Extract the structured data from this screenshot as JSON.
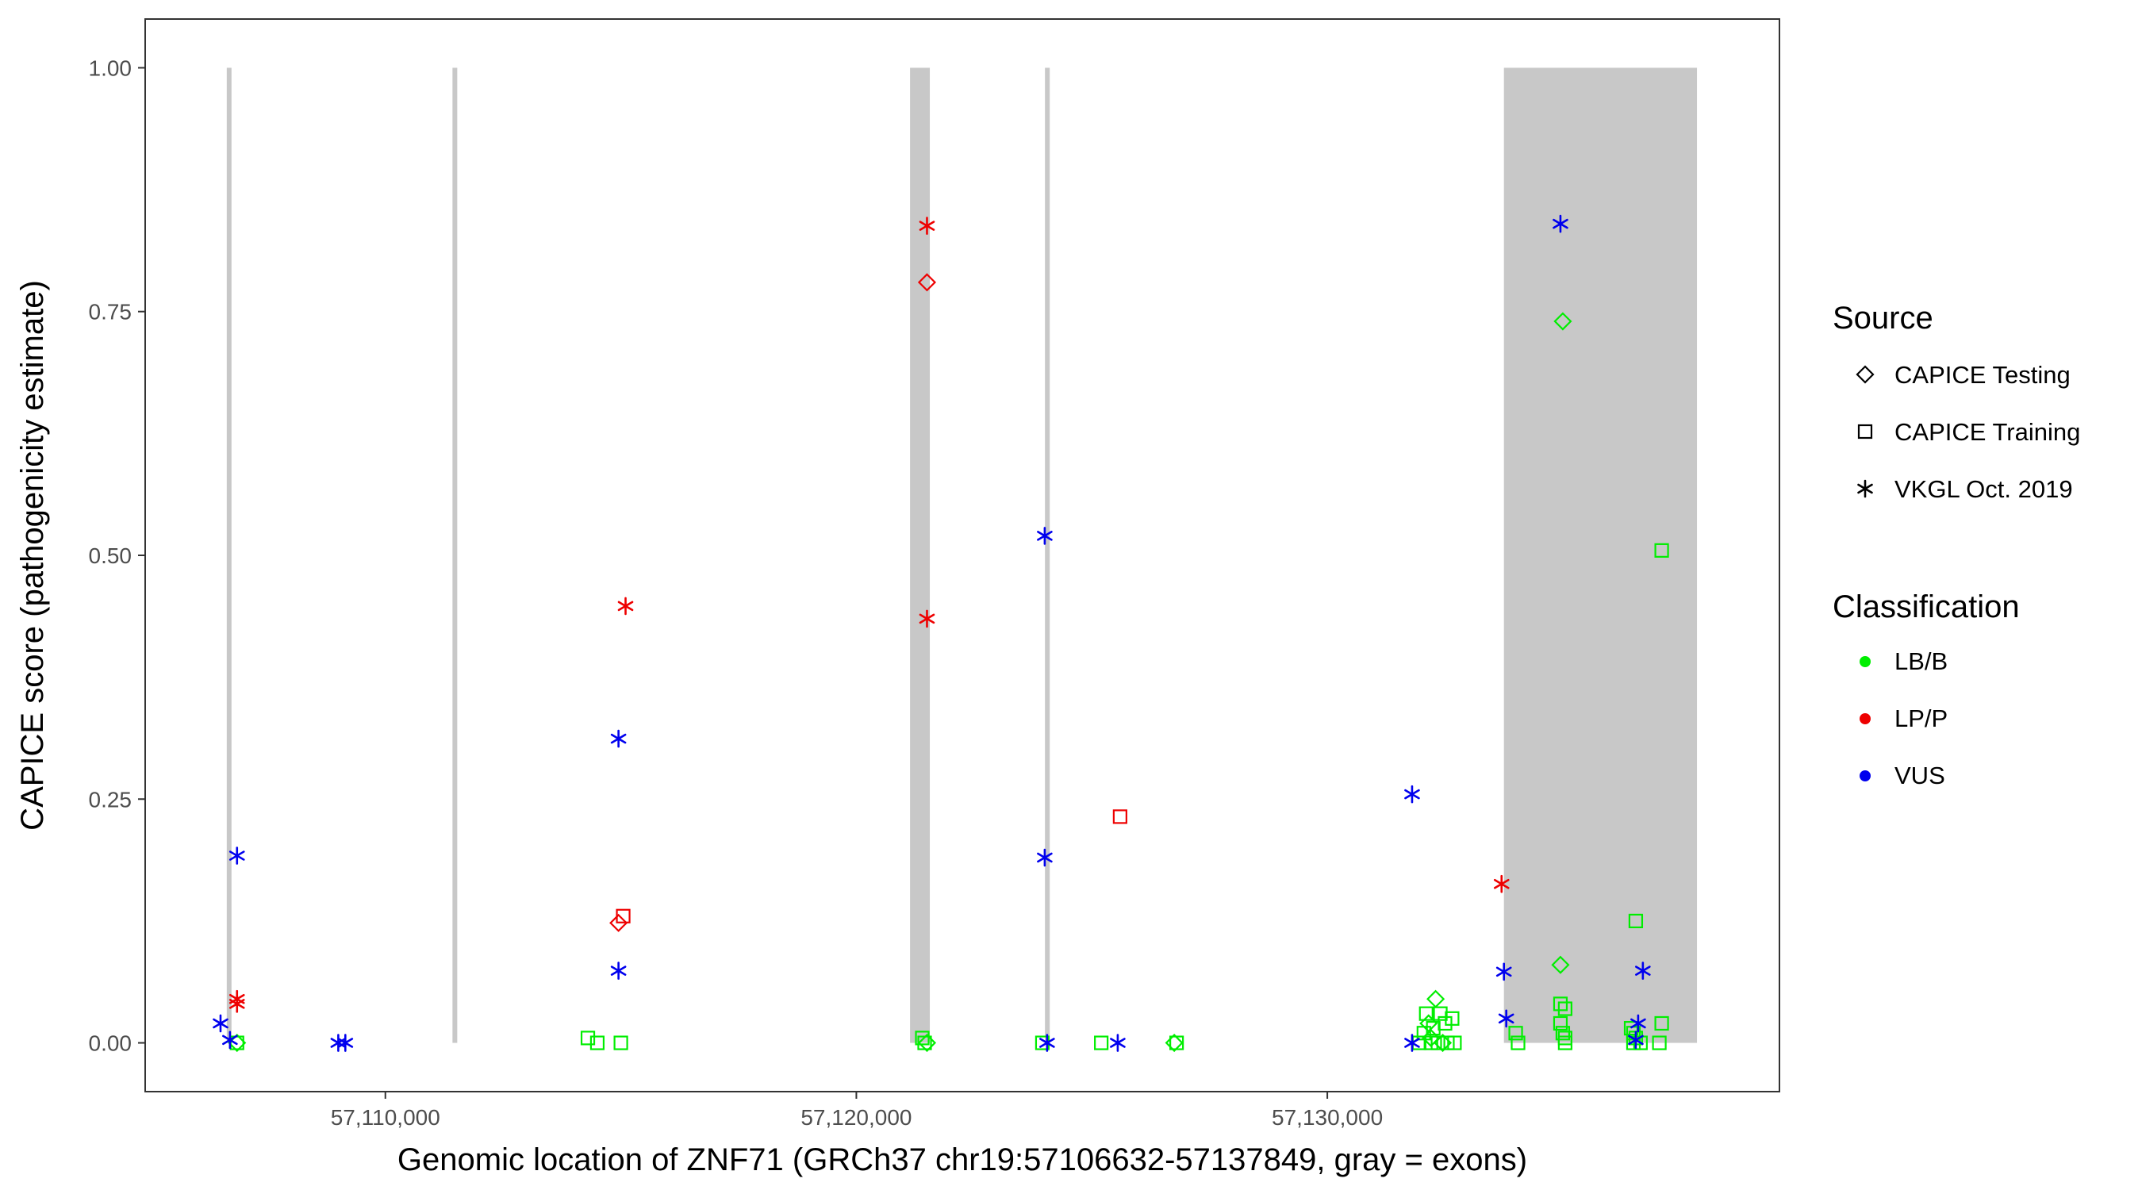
{
  "chart_data": {
    "type": "scatter",
    "title": "",
    "xlabel": "Genomic location of ZNF71 (GRCh37 chr19:57106632-57137849, gray = exons)",
    "ylabel": "CAPICE score (pathogenicity estimate)",
    "xlim": [
      57104900,
      57139600
    ],
    "ylim": [
      -0.05,
      1.05
    ],
    "x_ticks": [
      {
        "value": 57110000,
        "label": "57,110,000"
      },
      {
        "value": 57120000,
        "label": "57,120,000"
      },
      {
        "value": 57130000,
        "label": "57,130,000"
      }
    ],
    "y_ticks": [
      {
        "value": 0.0,
        "label": "0.00"
      },
      {
        "value": 0.25,
        "label": "0.25"
      },
      {
        "value": 0.5,
        "label": "0.50"
      },
      {
        "value": 0.75,
        "label": "0.75"
      },
      {
        "value": 1.0,
        "label": "1.00"
      }
    ],
    "exons": [
      {
        "start": 57106632,
        "end": 57106720
      },
      {
        "start": 57111425,
        "end": 57111500
      },
      {
        "start": 57121140,
        "end": 57121560
      },
      {
        "start": 57124005,
        "end": 57124095
      },
      {
        "start": 57133750,
        "end": 57137849
      }
    ],
    "colors": {
      "LB/B": "#00ee00",
      "LP/P": "#ee0000",
      "VUS": "#0000ee"
    },
    "legend": {
      "position": "right",
      "source_title": "Source",
      "source_items": [
        {
          "label": "CAPICE Testing",
          "shape": "diamond"
        },
        {
          "label": "CAPICE Training",
          "shape": "square"
        },
        {
          "label": "VKGL Oct. 2019",
          "shape": "asterisk"
        }
      ],
      "class_title": "Classification",
      "class_items": [
        {
          "label": "LB/B",
          "color": "#00ee00"
        },
        {
          "label": "LP/P",
          "color": "#ee0000"
        },
        {
          "label": "VUS",
          "color": "#0000ee"
        }
      ]
    },
    "series": [
      {
        "name": "LB/B",
        "points": [
          {
            "x": 57106850,
            "y": 0.0,
            "shape": "diamond"
          },
          {
            "x": 57106850,
            "y": 0.0,
            "shape": "square"
          },
          {
            "x": 57114300,
            "y": 0.005,
            "shape": "square"
          },
          {
            "x": 57114500,
            "y": 0.0,
            "shape": "square"
          },
          {
            "x": 57115000,
            "y": 0.0,
            "shape": "square"
          },
          {
            "x": 57121400,
            "y": 0.005,
            "shape": "square"
          },
          {
            "x": 57121450,
            "y": 0.0,
            "shape": "square"
          },
          {
            "x": 57121500,
            "y": 0.0,
            "shape": "diamond"
          },
          {
            "x": 57123950,
            "y": 0.0,
            "shape": "square"
          },
          {
            "x": 57125200,
            "y": 0.0,
            "shape": "square"
          },
          {
            "x": 57126750,
            "y": 0.0,
            "shape": "diamond"
          },
          {
            "x": 57126800,
            "y": 0.0,
            "shape": "square"
          },
          {
            "x": 57131950,
            "y": 0.0,
            "shape": "square"
          },
          {
            "x": 57132050,
            "y": 0.01,
            "shape": "square"
          },
          {
            "x": 57132100,
            "y": 0.03,
            "shape": "square"
          },
          {
            "x": 57132150,
            "y": 0.02,
            "shape": "diamond"
          },
          {
            "x": 57132200,
            "y": 0.0,
            "shape": "square"
          },
          {
            "x": 57132250,
            "y": 0.015,
            "shape": "square"
          },
          {
            "x": 57132300,
            "y": 0.045,
            "shape": "diamond"
          },
          {
            "x": 57132350,
            "y": 0.0,
            "shape": "square"
          },
          {
            "x": 57132400,
            "y": 0.03,
            "shape": "square"
          },
          {
            "x": 57132450,
            "y": 0.0,
            "shape": "diamond"
          },
          {
            "x": 57132500,
            "y": 0.02,
            "shape": "square"
          },
          {
            "x": 57132550,
            "y": 0.0,
            "shape": "square"
          },
          {
            "x": 57132650,
            "y": 0.025,
            "shape": "square"
          },
          {
            "x": 57132700,
            "y": 0.0,
            "shape": "square"
          },
          {
            "x": 57132200,
            "y": 0.005,
            "shape": "diamond"
          },
          {
            "x": 57134000,
            "y": 0.01,
            "shape": "square"
          },
          {
            "x": 57134050,
            "y": 0.0,
            "shape": "square"
          },
          {
            "x": 57135000,
            "y": 0.74,
            "shape": "diamond"
          },
          {
            "x": 57134950,
            "y": 0.08,
            "shape": "diamond"
          },
          {
            "x": 57134950,
            "y": 0.04,
            "shape": "square"
          },
          {
            "x": 57135050,
            "y": 0.035,
            "shape": "square"
          },
          {
            "x": 57134950,
            "y": 0.02,
            "shape": "square"
          },
          {
            "x": 57135000,
            "y": 0.01,
            "shape": "square"
          },
          {
            "x": 57135050,
            "y": 0.005,
            "shape": "square"
          },
          {
            "x": 57135050,
            "y": 0.0,
            "shape": "square"
          },
          {
            "x": 57136550,
            "y": 0.125,
            "shape": "square"
          },
          {
            "x": 57136450,
            "y": 0.015,
            "shape": "square"
          },
          {
            "x": 57136500,
            "y": 0.01,
            "shape": "square"
          },
          {
            "x": 57136550,
            "y": 0.005,
            "shape": "square"
          },
          {
            "x": 57136500,
            "y": 0.0,
            "shape": "square"
          },
          {
            "x": 57136650,
            "y": 0.0,
            "shape": "square"
          },
          {
            "x": 57137100,
            "y": 0.505,
            "shape": "square"
          },
          {
            "x": 57137100,
            "y": 0.02,
            "shape": "square"
          },
          {
            "x": 57137050,
            "y": 0.0,
            "shape": "square"
          }
        ]
      },
      {
        "name": "LP/P",
        "points": [
          {
            "x": 57106850,
            "y": 0.045,
            "shape": "asterisk"
          },
          {
            "x": 57106850,
            "y": 0.04,
            "shape": "asterisk"
          },
          {
            "x": 57115100,
            "y": 0.448,
            "shape": "asterisk"
          },
          {
            "x": 57115050,
            "y": 0.13,
            "shape": "square"
          },
          {
            "x": 57114950,
            "y": 0.123,
            "shape": "diamond"
          },
          {
            "x": 57121500,
            "y": 0.838,
            "shape": "asterisk"
          },
          {
            "x": 57121500,
            "y": 0.78,
            "shape": "diamond"
          },
          {
            "x": 57121500,
            "y": 0.435,
            "shape": "asterisk"
          },
          {
            "x": 57125600,
            "y": 0.232,
            "shape": "square"
          },
          {
            "x": 57133700,
            "y": 0.163,
            "shape": "asterisk"
          }
        ]
      },
      {
        "name": "VUS",
        "points": [
          {
            "x": 57106850,
            "y": 0.192,
            "shape": "asterisk"
          },
          {
            "x": 57106500,
            "y": 0.02,
            "shape": "asterisk"
          },
          {
            "x": 57106700,
            "y": 0.003,
            "shape": "asterisk"
          },
          {
            "x": 57109000,
            "y": 0.0,
            "shape": "asterisk"
          },
          {
            "x": 57109150,
            "y": 0.0,
            "shape": "asterisk"
          },
          {
            "x": 57114950,
            "y": 0.312,
            "shape": "asterisk"
          },
          {
            "x": 57114950,
            "y": 0.074,
            "shape": "asterisk"
          },
          {
            "x": 57124000,
            "y": 0.52,
            "shape": "asterisk"
          },
          {
            "x": 57124000,
            "y": 0.19,
            "shape": "asterisk"
          },
          {
            "x": 57124050,
            "y": 0.0,
            "shape": "asterisk"
          },
          {
            "x": 57125550,
            "y": 0.0,
            "shape": "asterisk"
          },
          {
            "x": 57131800,
            "y": 0.255,
            "shape": "asterisk"
          },
          {
            "x": 57131800,
            "y": 0.0,
            "shape": "asterisk"
          },
          {
            "x": 57133750,
            "y": 0.073,
            "shape": "asterisk"
          },
          {
            "x": 57133800,
            "y": 0.025,
            "shape": "asterisk"
          },
          {
            "x": 57134950,
            "y": 0.84,
            "shape": "asterisk"
          },
          {
            "x": 57136700,
            "y": 0.074,
            "shape": "asterisk"
          },
          {
            "x": 57136600,
            "y": 0.02,
            "shape": "asterisk"
          },
          {
            "x": 57136550,
            "y": 0.003,
            "shape": "asterisk"
          }
        ]
      }
    ]
  }
}
